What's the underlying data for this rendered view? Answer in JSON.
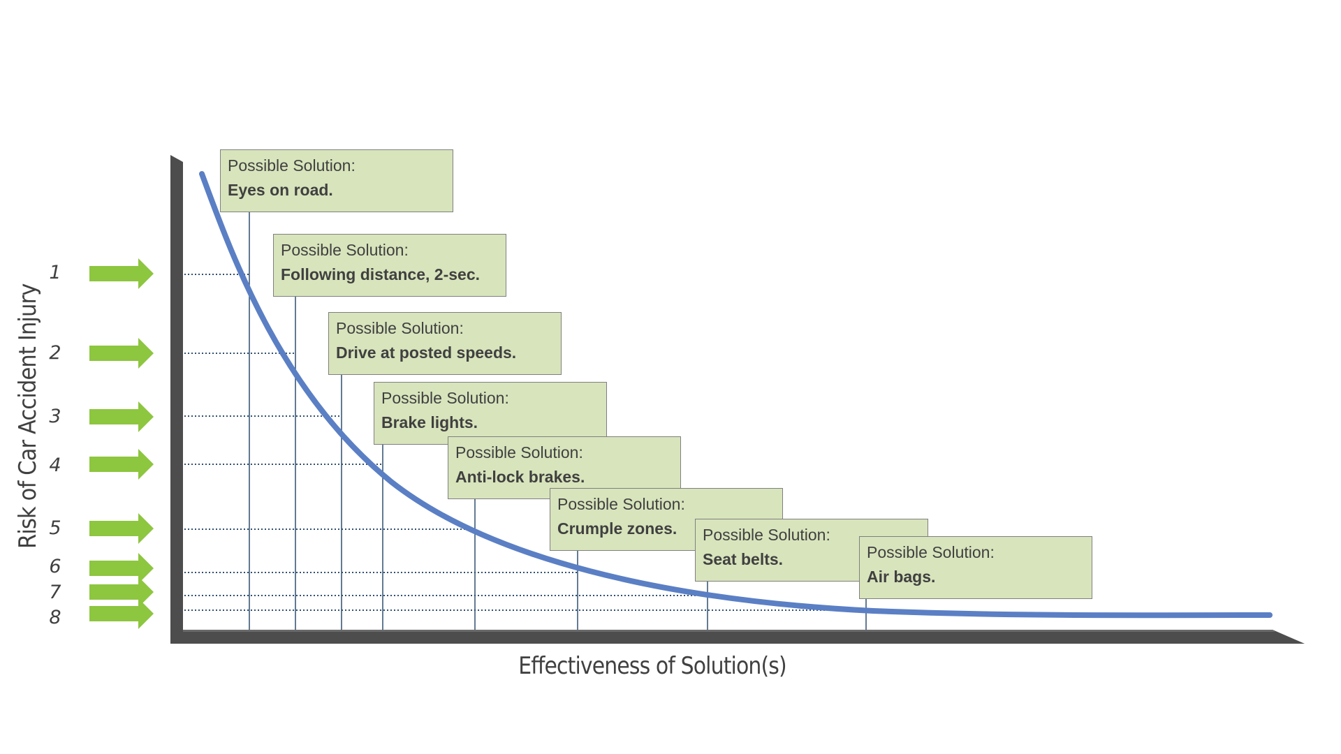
{
  "axes": {
    "y_title": "Risk of Car Accident Injury",
    "x_title": "Effectiveness of Solution(s)"
  },
  "colors": {
    "curve": "#5b7fc4",
    "axis": "#4d4d4d",
    "arrow": "#8dc63f",
    "box_fill": "#d8e4bc",
    "box_border": "#7f7f7f",
    "guide_line": "#2f4f6f"
  },
  "levels": [
    {
      "label": "1"
    },
    {
      "label": "2"
    },
    {
      "label": "3"
    },
    {
      "label": "4"
    },
    {
      "label": "5"
    },
    {
      "label": "6"
    },
    {
      "label": "7"
    },
    {
      "label": "8"
    }
  ],
  "solutions": [
    {
      "title": "Possible Solution:",
      "text": "Eyes on road."
    },
    {
      "title": "Possible Solution:",
      "text": "Following distance, 2-sec."
    },
    {
      "title": "Possible Solution:",
      "text": "Drive at posted speeds."
    },
    {
      "title": "Possible Solution:",
      "text": "Brake lights."
    },
    {
      "title": "Possible Solution:",
      "text": "Anti-lock brakes."
    },
    {
      "title": "Possible Solution:",
      "text": "Crumple zones."
    },
    {
      "title": "Possible Solution:",
      "text": "Seat belts."
    },
    {
      "title": "Possible Solution:",
      "text": "Air bags."
    }
  ]
}
